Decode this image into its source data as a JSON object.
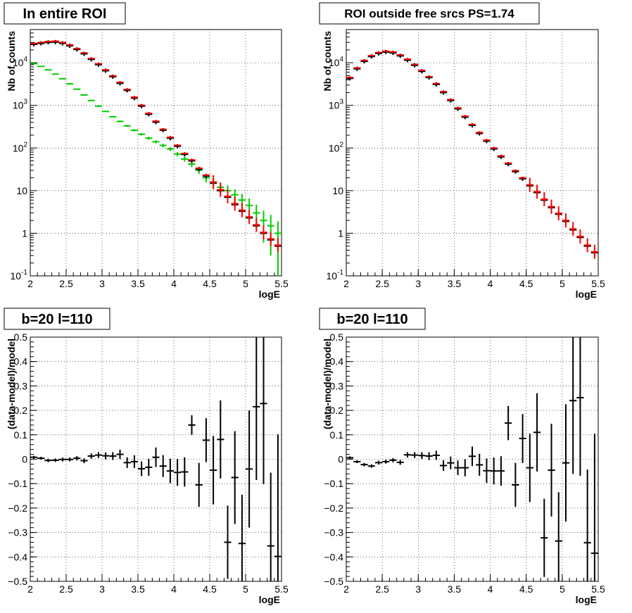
{
  "chart_data": [
    {
      "type": "scatter",
      "title": "In entire ROI",
      "xlabel": "logE",
      "ylabel": "Nb of counts",
      "xlim": [
        2,
        5.5
      ],
      "ylim": [
        0.1,
        60000
      ],
      "y_scale": "log",
      "grid": true,
      "x_ticks": [
        "2",
        "2.5",
        "3",
        "3.5",
        "4",
        "4.5",
        "5",
        "5.5"
      ],
      "y_ticks": [
        {
          "value": 0.1,
          "base": "10",
          "exp": "-1"
        },
        {
          "value": 1,
          "label": "1"
        },
        {
          "value": 10,
          "label": "10"
        },
        {
          "value": 100,
          "base": "10",
          "exp": "2"
        },
        {
          "value": 1000,
          "base": "10",
          "exp": "3"
        },
        {
          "value": 10000,
          "base": "10",
          "exp": "4"
        }
      ],
      "series": [
        {
          "color": "#00cc00",
          "marker": "error-cross",
          "x": [
            2.05,
            2.15,
            2.25,
            2.35,
            2.45,
            2.55,
            2.65,
            2.75,
            2.85,
            2.95,
            3.05,
            3.15,
            3.25,
            3.35,
            3.45,
            3.55,
            3.65,
            3.75,
            3.85,
            3.95,
            4.05,
            4.15,
            4.25,
            4.35,
            4.45,
            4.55,
            4.65,
            4.75,
            4.85,
            4.95,
            5.05,
            5.15,
            5.25,
            5.35,
            5.45
          ],
          "values": [
            9500,
            8200,
            6800,
            5400,
            4200,
            3200,
            2400,
            1750,
            1300,
            960,
            720,
            540,
            420,
            330,
            260,
            210,
            170,
            140,
            115,
            95,
            72,
            55,
            42,
            30,
            20,
            16,
            12,
            10,
            8,
            6,
            4.5,
            3,
            2,
            1.5,
            1
          ],
          "errors": [
            97,
            91,
            82,
            73,
            65,
            57,
            49,
            42,
            36,
            31,
            27,
            23,
            20,
            18,
            16,
            14,
            13,
            12,
            11,
            10,
            8.5,
            7.4,
            6.5,
            5.5,
            4.5,
            4,
            3.5,
            3.2,
            2.8,
            2.4,
            2.1,
            1.7,
            1.4,
            1.2,
            0.9
          ]
        },
        {
          "color": "#000000",
          "marker": "error-cross",
          "x": [
            2.05,
            2.15,
            2.25,
            2.35,
            2.45,
            2.55,
            2.65,
            2.75,
            2.85,
            2.95,
            3.05,
            3.15,
            3.25,
            3.35,
            3.45,
            3.55,
            3.65,
            3.75,
            3.85,
            3.95,
            4.05,
            4.15,
            4.25,
            4.35,
            4.45,
            4.55,
            4.65,
            4.75,
            4.85,
            4.95,
            5.05,
            5.15,
            5.25,
            5.35,
            5.45
          ],
          "values": [
            27000,
            28500,
            30000,
            30500,
            28500,
            25000,
            20500,
            16200,
            12000,
            9000,
            6500,
            4700,
            3300,
            2250,
            1480,
            960,
            620,
            405,
            262,
            170,
            110,
            71,
            50,
            32,
            22,
            15,
            10,
            7,
            4.7,
            3.3,
            2.3,
            1.5,
            1,
            0.7,
            0.5
          ],
          "errors": [
            0,
            0,
            0,
            0,
            0,
            0,
            0,
            0,
            0,
            0,
            0,
            0,
            0,
            0,
            0,
            0,
            0,
            0,
            0,
            0,
            0,
            0,
            0,
            0,
            0,
            0,
            0,
            0,
            0,
            0,
            0,
            0,
            0,
            0,
            0
          ]
        }
      ]
    },
    {
      "type": "scatter",
      "title": "ROI outside free srcs PS=1.74",
      "xlabel": "logE",
      "ylabel": "Nb of counts",
      "xlim": [
        2,
        5.5
      ],
      "ylim": [
        0.1,
        60000
      ],
      "y_scale": "log",
      "grid": true,
      "x_ticks": [
        "2",
        "2.5",
        "3",
        "3.5",
        "4",
        "4.5",
        "5",
        "5.5"
      ],
      "y_ticks": [
        {
          "value": 0.1,
          "base": "10",
          "exp": "-1"
        },
        {
          "value": 1,
          "label": "1"
        },
        {
          "value": 10,
          "label": "10"
        },
        {
          "value": 100,
          "base": "10",
          "exp": "2"
        },
        {
          "value": 1000,
          "base": "10",
          "exp": "3"
        },
        {
          "value": 10000,
          "base": "10",
          "exp": "4"
        }
      ],
      "series": [
        {
          "color": "#000000",
          "marker": "error-cross",
          "x": [
            2.05,
            2.15,
            2.25,
            2.35,
            2.45,
            2.55,
            2.65,
            2.75,
            2.85,
            2.95,
            3.05,
            3.15,
            3.25,
            3.35,
            3.45,
            3.55,
            3.65,
            3.75,
            3.85,
            3.95,
            4.05,
            4.15,
            4.25,
            4.35,
            4.45,
            4.55,
            4.65,
            4.75,
            4.85,
            4.95,
            5.05,
            5.15,
            5.25,
            5.35,
            5.45
          ],
          "values": [
            4300,
            7200,
            10800,
            14000,
            16500,
            17800,
            17000,
            14500,
            11500,
            8700,
            6300,
            4500,
            3100,
            2000,
            1300,
            830,
            530,
            340,
            220,
            145,
            95,
            62,
            42,
            28,
            19,
            13,
            9,
            6,
            4,
            2.8,
            1.9,
            1.2,
            0.8,
            0.5,
            0.35
          ],
          "errors": [
            0,
            0,
            0,
            0,
            0,
            0,
            0,
            0,
            0,
            0,
            0,
            0,
            0,
            0,
            0,
            0,
            0,
            0,
            0,
            0,
            0,
            0,
            0,
            0,
            0,
            0,
            0,
            0,
            0,
            0,
            0,
            0,
            0,
            0,
            0
          ]
        }
      ]
    },
    {
      "type": "scatter",
      "title": "b=20 l=110",
      "xlabel": "logE",
      "ylabel": "(data-model)/model",
      "xlim": [
        2,
        5.5
      ],
      "ylim": [
        -0.5,
        0.5
      ],
      "grid": true,
      "x_ticks": [
        "2",
        "2.5",
        "3",
        "3.5",
        "4",
        "4.5",
        "5",
        "5.5"
      ],
      "y_ticks": [
        "-0.5",
        "-0.4",
        "-0.3",
        "-0.2",
        "-0.1",
        "0",
        "0.1",
        "0.2",
        "0.3",
        "0.4",
        "0.5"
      ],
      "series": [
        {
          "color": "#000000",
          "marker": "error-cross",
          "x": [
            2.05,
            2.15,
            2.25,
            2.35,
            2.45,
            2.55,
            2.65,
            2.75,
            2.85,
            2.95,
            3.05,
            3.15,
            3.25,
            3.35,
            3.45,
            3.55,
            3.65,
            3.75,
            3.85,
            3.95,
            4.05,
            4.15,
            4.25,
            4.35,
            4.45,
            4.55,
            4.65,
            4.75,
            4.85,
            4.95,
            5.05,
            5.15,
            5.25,
            5.35,
            5.45
          ],
          "values": [
            0.008,
            0.004,
            -0.005,
            -0.004,
            -0.001,
            -0.001,
            0.004,
            -0.006,
            0.013,
            0.017,
            0.014,
            0.013,
            0.02,
            -0.014,
            -0.01,
            -0.039,
            -0.033,
            0.008,
            -0.028,
            -0.048,
            -0.054,
            -0.052,
            0.14,
            -0.105,
            0.078,
            -0.045,
            0.081,
            -0.34,
            -0.075,
            -0.345,
            -0.04,
            0.215,
            0.228,
            -0.355,
            -0.398
          ],
          "errors": [
            0.006,
            0.006,
            0.007,
            0.007,
            0.008,
            0.008,
            0.009,
            0.01,
            0.011,
            0.012,
            0.014,
            0.016,
            0.019,
            0.022,
            0.026,
            0.03,
            0.035,
            0.04,
            0.045,
            0.05,
            0.055,
            0.06,
            0.04,
            0.09,
            0.09,
            0.14,
            0.16,
            0.15,
            0.19,
            0.2,
            0.24,
            0.3,
            0.33,
            0.3,
            0.5
          ]
        }
      ]
    },
    {
      "type": "scatter",
      "title": "b=20 l=110",
      "xlabel": "logE",
      "ylabel": "(data-model)/model",
      "xlim": [
        2,
        5.5
      ],
      "ylim": [
        -0.5,
        0.5
      ],
      "grid": true,
      "x_ticks": [
        "2",
        "2.5",
        "3",
        "3.5",
        "4",
        "4.5",
        "5",
        "5.5"
      ],
      "y_ticks": [
        "-0.5",
        "-0.4",
        "-0.3",
        "-0.2",
        "-0.1",
        "0",
        "0.1",
        "0.2",
        "0.3",
        "0.4",
        "0.5"
      ],
      "series": [
        {
          "color": "#000000",
          "marker": "error-cross",
          "x": [
            2.05,
            2.15,
            2.25,
            2.35,
            2.45,
            2.55,
            2.65,
            2.75,
            2.85,
            2.95,
            3.05,
            3.15,
            3.25,
            3.35,
            3.45,
            3.55,
            3.65,
            3.75,
            3.85,
            3.95,
            4.05,
            4.15,
            4.25,
            4.35,
            4.45,
            4.55,
            4.65,
            4.75,
            4.85,
            4.95,
            5.05,
            5.15,
            5.25,
            5.35,
            5.45
          ],
          "values": [
            0.006,
            -0.01,
            -0.022,
            -0.028,
            -0.014,
            -0.01,
            -0.004,
            -0.013,
            0.018,
            0.017,
            0.015,
            0.013,
            0.016,
            -0.026,
            -0.015,
            -0.035,
            -0.035,
            0.012,
            -0.023,
            -0.047,
            -0.048,
            -0.048,
            0.148,
            -0.105,
            0.085,
            -0.035,
            0.11,
            -0.322,
            -0.045,
            -0.335,
            -0.015,
            0.24,
            0.252,
            -0.342,
            -0.385
          ],
          "errors": [
            0.006,
            0.006,
            0.007,
            0.007,
            0.008,
            0.008,
            0.009,
            0.01,
            0.011,
            0.012,
            0.014,
            0.016,
            0.019,
            0.022,
            0.026,
            0.03,
            0.035,
            0.04,
            0.045,
            0.05,
            0.055,
            0.06,
            0.07,
            0.09,
            0.1,
            0.14,
            0.16,
            0.16,
            0.19,
            0.2,
            0.24,
            0.3,
            0.32,
            0.3,
            0.49
          ]
        }
      ]
    }
  ]
}
